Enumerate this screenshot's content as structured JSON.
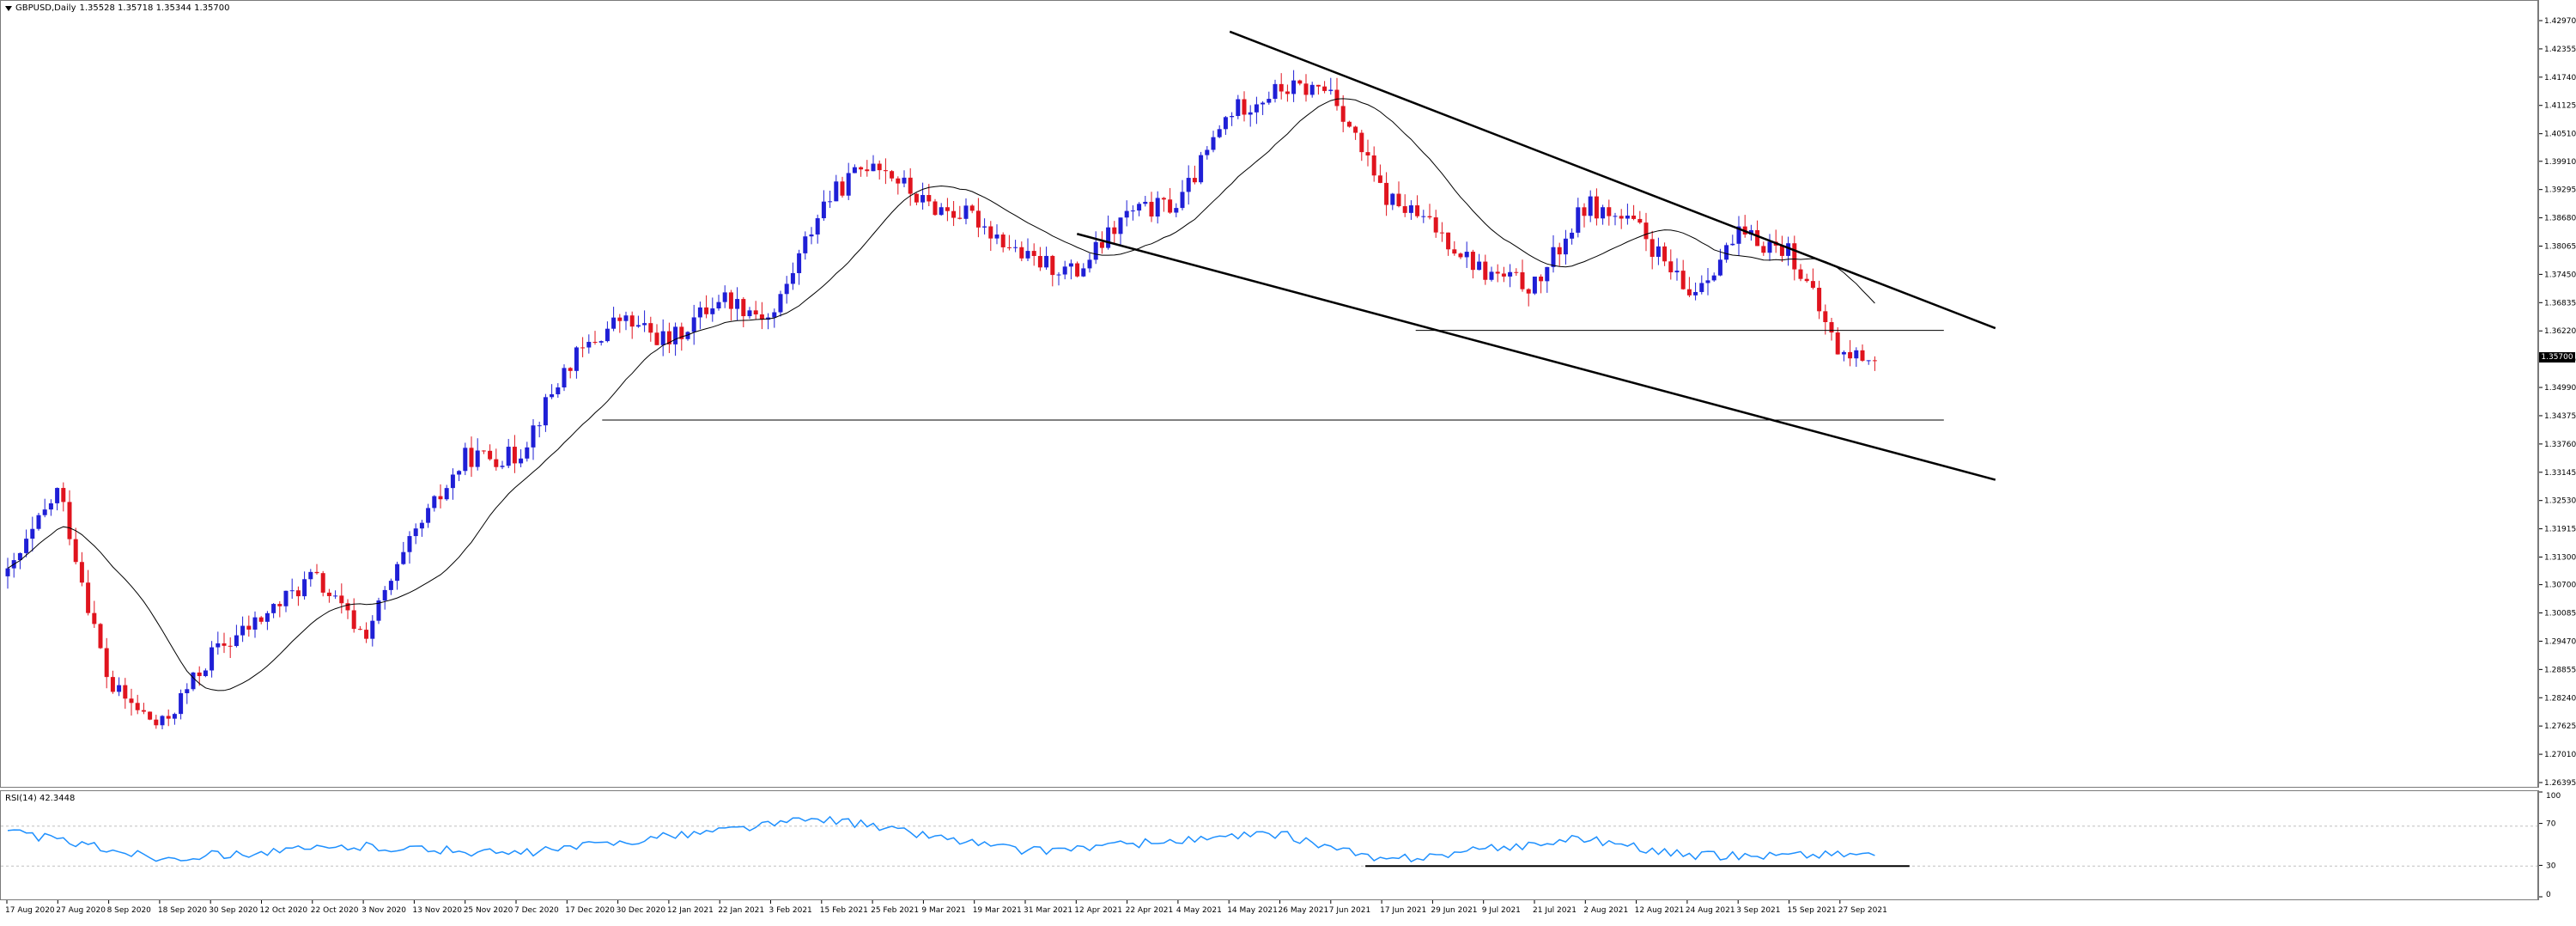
{
  "header": {
    "symbol": "GBPUSD,Daily",
    "ohlc": "1.35528 1.35718 1.35344 1.35700"
  },
  "rsi": {
    "title": "RSI(14) 42.3448",
    "levels": [
      "100",
      "70",
      "30",
      "0"
    ]
  },
  "price_axis": {
    "last_price": "1.35700",
    "ticks": [
      "1.42970",
      "1.42355",
      "1.41740",
      "1.41125",
      "1.40510",
      "1.39910",
      "1.39295",
      "1.38680",
      "1.38065",
      "1.37450",
      "1.36835",
      "1.36220",
      "1.35605",
      "1.34990",
      "1.34375",
      "1.33760",
      "1.33145",
      "1.32530",
      "1.31915",
      "1.31300",
      "1.30700",
      "1.30085",
      "1.29470",
      "1.28855",
      "1.28240",
      "1.27625",
      "1.27010",
      "1.26395"
    ]
  },
  "time_axis": {
    "labels": [
      "17 Aug 2020",
      "27 Aug 2020",
      "8 Sep 2020",
      "18 Sep 2020",
      "30 Sep 2020",
      "12 Oct 2020",
      "22 Oct 2020",
      "3 Nov 2020",
      "13 Nov 2020",
      "25 Nov 2020",
      "7 Dec 2020",
      "17 Dec 2020",
      "30 Dec 2020",
      "12 Jan 2021",
      "22 Jan 2021",
      "3 Feb 2021",
      "15 Feb 2021",
      "25 Feb 2021",
      "9 Mar 2021",
      "19 Mar 2021",
      "31 Mar 2021",
      "12 Apr 2021",
      "22 Apr 2021",
      "4 May 2021",
      "14 May 2021",
      "26 May 2021",
      "7 Jun 2021",
      "17 Jun 2021",
      "29 Jun 2021",
      "9 Jul 2021",
      "21 Jul 2021",
      "2 Aug 2021",
      "12 Aug 2021",
      "24 Aug 2021",
      "3 Sep 2021",
      "15 Sep 2021",
      "27 Sep 2021"
    ]
  },
  "colors": {
    "bull": "#1f1fd6",
    "bear": "#e0141e",
    "ma": "#000000",
    "rsi": "#1e90ff",
    "trendline": "#000000"
  },
  "chart_data": {
    "type": "candlestick",
    "symbol": "GBPUSD",
    "timeframe": "Daily",
    "ylim": [
      1.26395,
      1.4297
    ],
    "key_closes": [
      {
        "x": "17 Aug 2020",
        "close": 1.309
      },
      {
        "x": "27 Aug 2020",
        "close": 1.328
      },
      {
        "x": "8 Sep 2020",
        "close": 1.285
      },
      {
        "x": "18 Sep 2020",
        "close": 1.276
      },
      {
        "x": "30 Sep 2020",
        "close": 1.292
      },
      {
        "x": "12 Oct 2020",
        "close": 1.3
      },
      {
        "x": "22 Oct 2020",
        "close": 1.309
      },
      {
        "x": "3 Nov 2020",
        "close": 1.296
      },
      {
        "x": "13 Nov 2020",
        "close": 1.318
      },
      {
        "x": "25 Nov 2020",
        "close": 1.335
      },
      {
        "x": "7 Dec 2020",
        "close": 1.335
      },
      {
        "x": "17 Dec 2020",
        "close": 1.355
      },
      {
        "x": "30 Dec 2020",
        "close": 1.365
      },
      {
        "x": "12 Jan 2021",
        "close": 1.36
      },
      {
        "x": "22 Jan 2021",
        "close": 1.37
      },
      {
        "x": "3 Feb 2021",
        "close": 1.365
      },
      {
        "x": "15 Feb 2021",
        "close": 1.39
      },
      {
        "x": "25 Feb 2021",
        "close": 1.4
      },
      {
        "x": "9 Mar 2021",
        "close": 1.39
      },
      {
        "x": "19 Mar 2021",
        "close": 1.387
      },
      {
        "x": "31 Mar 2021",
        "close": 1.378
      },
      {
        "x": "12 Apr 2021",
        "close": 1.375
      },
      {
        "x": "22 Apr 2021",
        "close": 1.388
      },
      {
        "x": "4 May 2021",
        "close": 1.39
      },
      {
        "x": "14 May 2021",
        "close": 1.41
      },
      {
        "x": "26 May 2021",
        "close": 1.415
      },
      {
        "x": "7 Jun 2021",
        "close": 1.415
      },
      {
        "x": "17 Jun 2021",
        "close": 1.392
      },
      {
        "x": "29 Jun 2021",
        "close": 1.385
      },
      {
        "x": "9 Jul 2021",
        "close": 1.375
      },
      {
        "x": "21 Jul 2021",
        "close": 1.372
      },
      {
        "x": "2 Aug 2021",
        "close": 1.39
      },
      {
        "x": "12 Aug 2021",
        "close": 1.385
      },
      {
        "x": "24 Aug 2021",
        "close": 1.37
      },
      {
        "x": "3 Sep 2021",
        "close": 1.383
      },
      {
        "x": "15 Sep 2021",
        "close": 1.38
      },
      {
        "x": "27 Sep 2021",
        "close": 1.357
      }
    ],
    "rsi_levels": [
      70,
      30
    ],
    "rsi_key_values": [
      {
        "x": "17 Aug 2020",
        "value": 65
      },
      {
        "x": "18 Sep 2020",
        "value": 38
      },
      {
        "x": "3 Nov 2020",
        "value": 50
      },
      {
        "x": "7 Dec 2020",
        "value": 42
      },
      {
        "x": "15 Feb 2021",
        "value": 78
      },
      {
        "x": "31 Mar 2021",
        "value": 45
      },
      {
        "x": "26 May 2021",
        "value": 62
      },
      {
        "x": "17 Jun 2021",
        "value": 35
      },
      {
        "x": "2 Aug 2021",
        "value": 58
      },
      {
        "x": "24 Aug 2021",
        "value": 40
      },
      {
        "x": "27 Sep 2021",
        "value": 42.3448
      }
    ],
    "horizontal_levels": [
      1.3625,
      1.343
    ],
    "descending_channel": {
      "upper": [
        {
          "x": "14 May 2021",
          "price": 1.4275
        },
        {
          "x": "27 Sep 2021",
          "price": 1.376
        }
      ],
      "lower": [
        {
          "x": "12 Apr 2021",
          "price": 1.3835
        },
        {
          "x": "27 Sep 2021",
          "price": 1.339
        }
      ]
    }
  }
}
